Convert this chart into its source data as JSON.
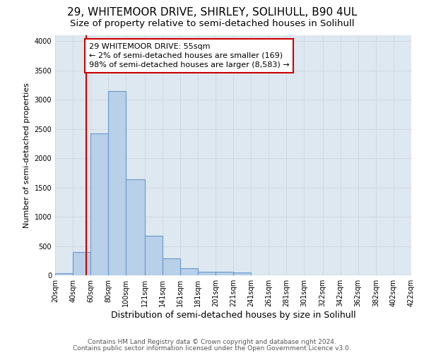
{
  "title1": "29, WHITEMOOR DRIVE, SHIRLEY, SOLIHULL, B90 4UL",
  "title2": "Size of property relative to semi-detached houses in Solihull",
  "xlabel": "Distribution of semi-detached houses by size in Solihull",
  "ylabel": "Number of semi-detached properties",
  "footer1": "Contains HM Land Registry data © Crown copyright and database right 2024.",
  "footer2": "Contains public sector information licensed under the Open Government Licence v3.0.",
  "annotation_title": "29 WHITEMOOR DRIVE: 55sqm",
  "annotation_line1": "← 2% of semi-detached houses are smaller (169)",
  "annotation_line2": "98% of semi-detached houses are larger (8,583) →",
  "vline_x": 55,
  "bar_bins": [
    20,
    40,
    60,
    80,
    100,
    121,
    141,
    161,
    181,
    201,
    221,
    241,
    261,
    281,
    301,
    322,
    342,
    362,
    382,
    402,
    422
  ],
  "bar_heights": [
    40,
    400,
    2420,
    3150,
    1640,
    670,
    290,
    115,
    65,
    55,
    45,
    0,
    0,
    0,
    0,
    0,
    0,
    0,
    0,
    0
  ],
  "tick_labels": [
    "20sqm",
    "40sqm",
    "60sqm",
    "80sqm",
    "100sqm",
    "121sqm",
    "141sqm",
    "161sqm",
    "181sqm",
    "201sqm",
    "221sqm",
    "241sqm",
    "261sqm",
    "281sqm",
    "301sqm",
    "322sqm",
    "342sqm",
    "362sqm",
    "382sqm",
    "402sqm",
    "422sqm"
  ],
  "bar_color": "#b8d0e8",
  "bar_edge_color": "#6699cc",
  "vline_color": "#cc0000",
  "annotation_box_color": "#cc0000",
  "ylim": [
    0,
    4100
  ],
  "yticks": [
    0,
    500,
    1000,
    1500,
    2000,
    2500,
    3000,
    3500,
    4000
  ],
  "grid_color": "#d0d8e0",
  "bg_color": "#dde8f0",
  "title1_fontsize": 11,
  "title2_fontsize": 9.5,
  "xlabel_fontsize": 9,
  "ylabel_fontsize": 8,
  "footer_fontsize": 6.5,
  "annot_fontsize": 8,
  "tick_fontsize": 7
}
